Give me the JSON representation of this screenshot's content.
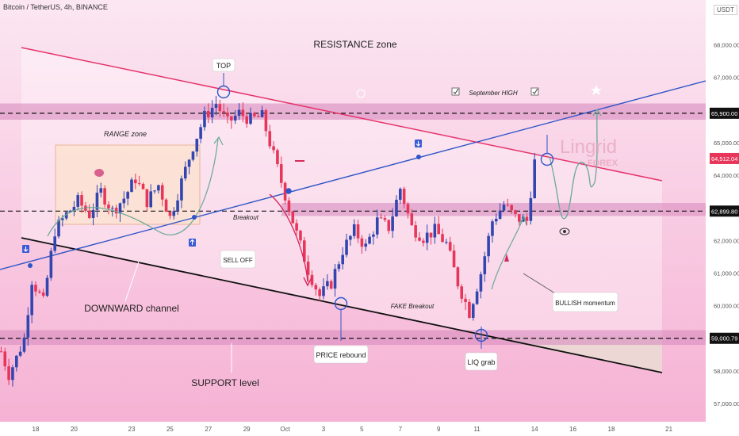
{
  "header": {
    "title": "Bitcoin / TetherUS, 4h, BINANCE",
    "unit": "USDT"
  },
  "colors": {
    "background_top": "#fbe7f2",
    "background_bottom": "#f6b0d3",
    "bull": "#3346b0",
    "bear": "#e8365a",
    "zone": "#d98cc0",
    "range_zone": "#fde3d4",
    "resistance_line": "#e5336a",
    "support_line": "#111111",
    "blue_line": "#2f55c8",
    "curve": "#6aa898"
  },
  "chart_data": {
    "type": "candlestick",
    "title": "Bitcoin / TetherUS, 4h, BINANCE",
    "y_ticks": [
      {
        "value": 68000,
        "label": "68,000.00"
      },
      {
        "value": 67000,
        "label": "67,000.00"
      },
      {
        "value": 66000,
        "label": "66,000.00"
      },
      {
        "value": 65000,
        "label": "65,000.00"
      },
      {
        "value": 64000,
        "label": "64,000.00"
      },
      {
        "value": 63000,
        "label": "63,000.00"
      },
      {
        "value": 62000,
        "label": "62,000.00"
      },
      {
        "value": 61000,
        "label": "61,000.00"
      },
      {
        "value": 60000,
        "label": "60,000.00"
      },
      {
        "value": 59000,
        "label": "59,000.00"
      },
      {
        "value": 58000,
        "label": "58,000.00"
      },
      {
        "value": 57000,
        "label": "57,000.00"
      }
    ],
    "x_ticks": [
      {
        "label": "18",
        "pos": 0.0
      },
      {
        "label": "20",
        "pos": 2.0
      },
      {
        "label": "23",
        "pos": 5.0
      },
      {
        "label": "25",
        "pos": 7.0
      },
      {
        "label": "27",
        "pos": 9.0
      },
      {
        "label": "29",
        "pos": 11.0
      },
      {
        "label": "Oct",
        "pos": 13.0
      },
      {
        "label": "3",
        "pos": 15.0
      },
      {
        "label": "5",
        "pos": 17.0
      },
      {
        "label": "7",
        "pos": 19.0
      },
      {
        "label": "9",
        "pos": 21.0
      },
      {
        "label": "11",
        "pos": 23.0
      },
      {
        "label": "14",
        "pos": 26.0
      },
      {
        "label": "16",
        "pos": 28.0
      },
      {
        "label": "18",
        "pos": 30.0
      },
      {
        "label": "21",
        "pos": 33.0
      }
    ],
    "price_labels": [
      {
        "value": 65900,
        "label": "65,900.00",
        "color": "#111111"
      },
      {
        "value": 64512.04,
        "label": "64,512.04",
        "color": "#e8365a"
      },
      {
        "value": 62899.8,
        "label": "62,899.80",
        "color": "#111111"
      },
      {
        "value": 59000.79,
        "label": "59,000.79",
        "color": "#111111"
      }
    ],
    "price_path": [
      {
        "x": -1.8,
        "y": 58600
      },
      {
        "x": -1.4,
        "y": 57900
      },
      {
        "x": -1.0,
        "y": 58400
      },
      {
        "x": -0.6,
        "y": 59000
      },
      {
        "x": -0.2,
        "y": 60800
      },
      {
        "x": 0.4,
        "y": 60100
      },
      {
        "x": 1.0,
        "y": 62300
      },
      {
        "x": 1.6,
        "y": 62800
      },
      {
        "x": 2.2,
        "y": 63200
      },
      {
        "x": 2.8,
        "y": 62800
      },
      {
        "x": 3.4,
        "y": 63500
      },
      {
        "x": 4.0,
        "y": 62900
      },
      {
        "x": 4.6,
        "y": 63300
      },
      {
        "x": 5.2,
        "y": 63900
      },
      {
        "x": 5.8,
        "y": 63200
      },
      {
        "x": 6.4,
        "y": 63700
      },
      {
        "x": 7.0,
        "y": 62700
      },
      {
        "x": 7.6,
        "y": 63800
      },
      {
        "x": 8.2,
        "y": 64900
      },
      {
        "x": 8.8,
        "y": 65800
      },
      {
        "x": 9.4,
        "y": 66200
      },
      {
        "x": 10.0,
        "y": 65600
      },
      {
        "x": 10.6,
        "y": 65900
      },
      {
        "x": 11.2,
        "y": 65700
      },
      {
        "x": 11.8,
        "y": 65800
      },
      {
        "x": 12.4,
        "y": 64600
      },
      {
        "x": 13.0,
        "y": 63400
      },
      {
        "x": 13.6,
        "y": 62200
      },
      {
        "x": 14.2,
        "y": 61100
      },
      {
        "x": 14.8,
        "y": 60300
      },
      {
        "x": 15.4,
        "y": 60700
      },
      {
        "x": 16.0,
        "y": 61700
      },
      {
        "x": 16.6,
        "y": 62300
      },
      {
        "x": 17.2,
        "y": 61800
      },
      {
        "x": 17.8,
        "y": 62600
      },
      {
        "x": 18.4,
        "y": 62400
      },
      {
        "x": 19.0,
        "y": 63600
      },
      {
        "x": 19.6,
        "y": 62400
      },
      {
        "x": 20.2,
        "y": 62100
      },
      {
        "x": 20.8,
        "y": 62300
      },
      {
        "x": 21.4,
        "y": 61900
      },
      {
        "x": 22.0,
        "y": 60700
      },
      {
        "x": 22.6,
        "y": 59800
      },
      {
        "x": 23.2,
        "y": 61000
      },
      {
        "x": 23.8,
        "y": 62600
      },
      {
        "x": 24.4,
        "y": 63100
      },
      {
        "x": 25.0,
        "y": 62700
      },
      {
        "x": 25.6,
        "y": 62600
      },
      {
        "x": 26.0,
        "y": 64400
      }
    ],
    "zones": [
      {
        "name": "resistance",
        "y1": 65700,
        "y2": 66200
      },
      {
        "name": "mid",
        "y1": 62750,
        "y2": 63150
      },
      {
        "name": "support",
        "y1": 58800,
        "y2": 59250
      }
    ],
    "annotations": [
      {
        "label": "RESISTANCE zone"
      },
      {
        "label": "TOP"
      },
      {
        "label": "September HIGH"
      },
      {
        "label": "RANGE zone"
      },
      {
        "label": "Breakout"
      },
      {
        "label": "SELL OFF"
      },
      {
        "label": "DOWNWARD channel"
      },
      {
        "label": "FAKE Breakout"
      },
      {
        "label": "PRICE rebound"
      },
      {
        "label": "LIQ grab"
      },
      {
        "label": "BULLISH momentum"
      },
      {
        "label": "SUPPORT level"
      }
    ],
    "watermark": {
      "main": "Lingrid",
      "sub": "FOREX"
    }
  }
}
